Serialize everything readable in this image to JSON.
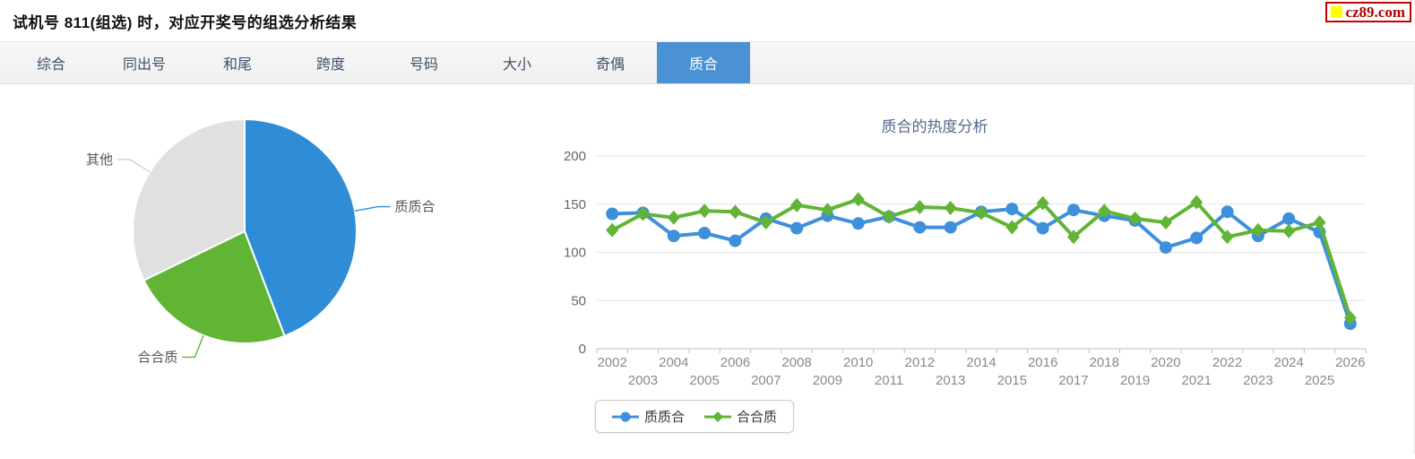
{
  "page": {
    "title": "试机号 811(组选) 时，对应开奖号的组选分析结果",
    "brand": "cz89.com"
  },
  "tabs": {
    "items": [
      {
        "label": "综合",
        "active": false
      },
      {
        "label": "同出号",
        "active": false
      },
      {
        "label": "和尾",
        "active": false
      },
      {
        "label": "跨度",
        "active": false
      },
      {
        "label": "号码",
        "active": false
      },
      {
        "label": "大小",
        "active": false
      },
      {
        "label": "奇偶",
        "active": false
      },
      {
        "label": "质合",
        "active": true
      }
    ]
  },
  "colors": {
    "active_tab": "#4a92d4",
    "pie_blue": "#2f8dd8",
    "pie_green": "#62b435",
    "pie_gray": "#e0e0e0",
    "line_blue": "#3e90dc",
    "line_green": "#62b435",
    "grid": "#e2e2e2",
    "axis": "#b3c2d1",
    "title_text": "#55678d",
    "brand_red": "#b40000",
    "brand_yellow": "#ffff00"
  },
  "chart_data": [
    {
      "type": "pie",
      "slices": [
        {
          "label": "质质合",
          "percent": 44.2,
          "color": "#2f8dd8"
        },
        {
          "label": "合合质",
          "percent": 23.6,
          "color": "#62b435"
        },
        {
          "label": "其他",
          "percent": 32.2,
          "color": "#e0e0e0"
        }
      ],
      "start": "top",
      "direction": "clockwise"
    },
    {
      "type": "line",
      "title": "质合的热度分析",
      "x": [
        2002,
        2003,
        2004,
        2005,
        2006,
        2007,
        2008,
        2009,
        2010,
        2011,
        2012,
        2013,
        2014,
        2015,
        2016,
        2017,
        2018,
        2019,
        2020,
        2021,
        2022,
        2023,
        2024,
        2025,
        2026
      ],
      "series": [
        {
          "name": "质质合",
          "color": "#3e90dc",
          "marker": "circle",
          "values": [
            140,
            141,
            117,
            120,
            112,
            135,
            125,
            138,
            130,
            137,
            126,
            126,
            142,
            145,
            125,
            144,
            138,
            133,
            105,
            115,
            142,
            117,
            135,
            121,
            26
          ]
        },
        {
          "name": "合合质",
          "color": "#62b435",
          "marker": "diamond",
          "values": [
            123,
            140,
            136,
            143,
            142,
            131,
            149,
            144,
            155,
            137,
            147,
            146,
            141,
            126,
            151,
            116,
            143,
            135,
            131,
            152,
            116,
            123,
            122,
            131,
            32
          ]
        }
      ],
      "ylim": [
        0,
        200
      ],
      "yticks": [
        0,
        50,
        100,
        150,
        200
      ],
      "grid": true,
      "legend_position": "bottom"
    }
  ]
}
